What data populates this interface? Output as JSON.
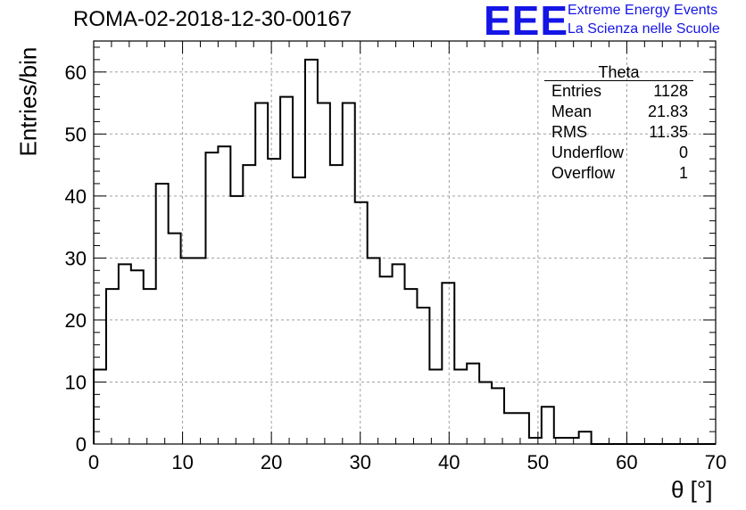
{
  "header": {
    "run_title": "ROMA-02-2018-12-30-00167",
    "logo_text": "EEE",
    "logo_line1": "Extreme Energy Events",
    "logo_line2": "La Scienza nelle Scuole",
    "brand_color": "#1515e6"
  },
  "stats_box": {
    "name": "Theta",
    "rows": [
      {
        "label": "Entries",
        "value": "1128"
      },
      {
        "label": "Mean",
        "value": "21.83"
      },
      {
        "label": "RMS",
        "value": "11.35"
      },
      {
        "label": "Underflow",
        "value": "0"
      },
      {
        "label": "Overflow",
        "value": "1"
      }
    ]
  },
  "chart_data": {
    "type": "histogram",
    "title": "ROMA-02-2018-12-30-00167",
    "xlabel": "θ [°]",
    "ylabel": "Entries/bin",
    "xlim": [
      0,
      70
    ],
    "ylim": [
      0,
      65
    ],
    "bin_width": 1.4,
    "values": [
      12,
      25,
      29,
      28,
      25,
      42,
      34,
      30,
      30,
      47,
      48,
      40,
      45,
      55,
      46,
      56,
      43,
      62,
      55,
      45,
      55,
      39,
      30,
      27,
      29,
      25,
      22,
      12,
      26,
      12,
      13,
      10,
      9,
      5,
      5,
      1,
      6,
      1,
      1,
      2,
      0,
      0,
      0,
      0,
      0,
      0,
      0,
      0,
      0,
      0
    ],
    "x_ticks": [
      0,
      10,
      20,
      30,
      40,
      50,
      60,
      70
    ],
    "y_ticks": [
      0,
      10,
      20,
      30,
      40,
      50,
      60
    ],
    "grid": true,
    "line_color": "#000000"
  }
}
